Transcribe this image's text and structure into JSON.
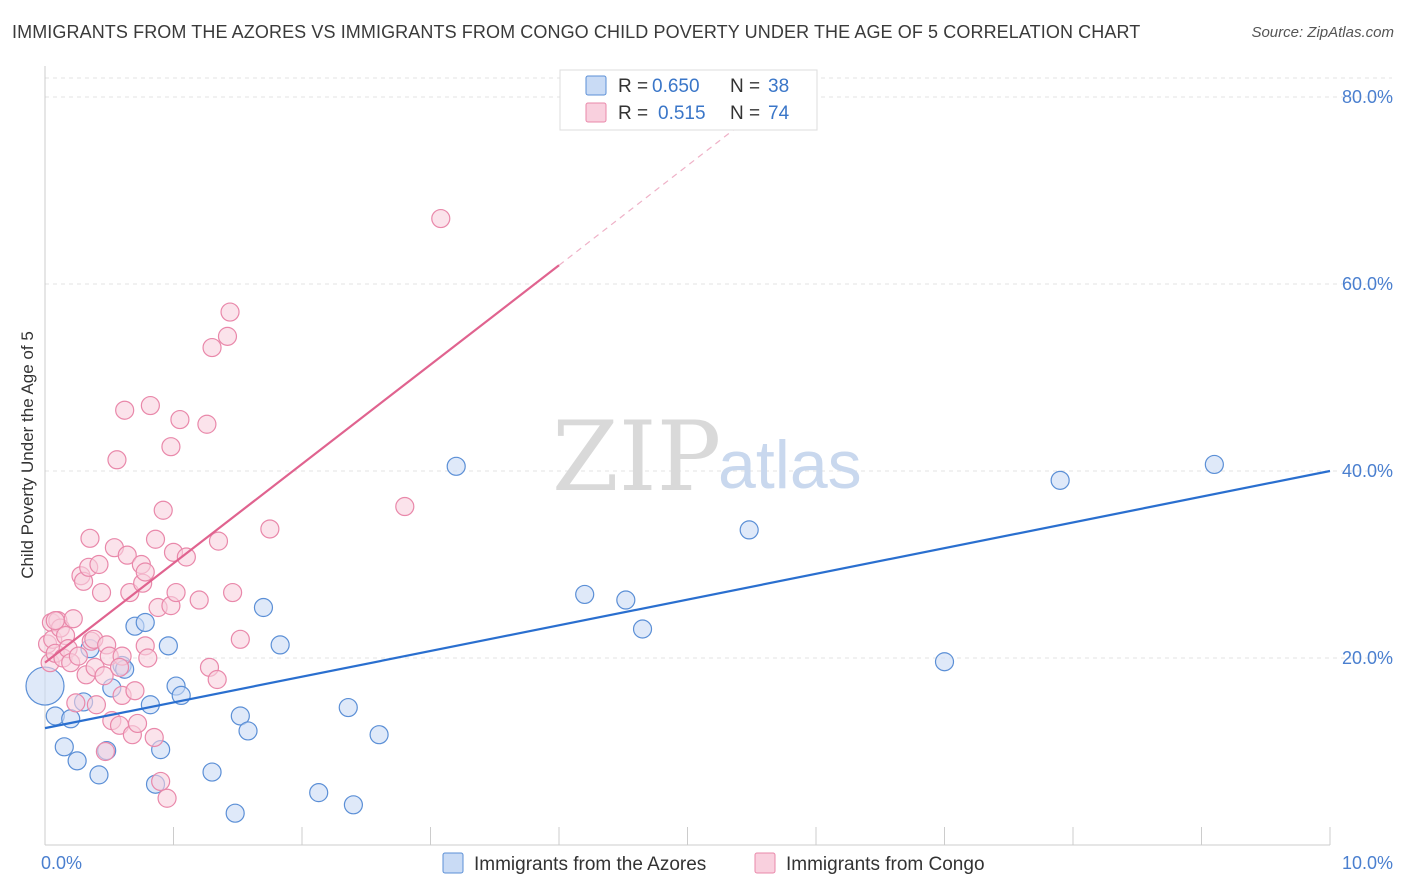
{
  "header": {
    "title": "IMMIGRANTS FROM THE AZORES VS IMMIGRANTS FROM CONGO CHILD POVERTY UNDER THE AGE OF 5 CORRELATION CHART",
    "source": "Source: ZipAtlas.com"
  },
  "watermark": {
    "zip": "ZIP",
    "atlas": "atlas"
  },
  "chart_data": {
    "type": "scatter",
    "title": "IMMIGRANTS FROM THE AZORES VS IMMIGRANTS FROM CONGO CHILD POVERTY UNDER THE AGE OF 5 CORRELATION CHART",
    "xlabel": "",
    "ylabel": "Child Poverty Under the Age of 5",
    "xlim": [
      0,
      10
    ],
    "ylim": [
      0,
      80
    ],
    "x_tick_labels": [
      "0.0%",
      "10.0%"
    ],
    "y_ticks": [
      20,
      40,
      60,
      80
    ],
    "y_tick_labels": [
      "20.0%",
      "40.0%",
      "60.0%",
      "80.0%"
    ],
    "grid": true,
    "legend": {
      "position": "top-center",
      "entries": [
        {
          "r_label": "R =",
          "r_value": "0.650",
          "n_label": "N =",
          "n_value": "38"
        },
        {
          "r_label": "R =",
          "r_value": "0.515",
          "n_label": "N =",
          "n_value": "74"
        }
      ]
    },
    "series": [
      {
        "name": "Immigrants from the Azores",
        "color": "#5b8fd6",
        "fill": "#c9dbf5",
        "trend": {
          "x0": 0.0,
          "y0": 12.5,
          "x1": 10.0,
          "y1": 40.0,
          "color": "#2a6fcf"
        },
        "points": [
          [
            0.0,
            17.0
          ],
          [
            0.08,
            13.8
          ],
          [
            0.15,
            10.5
          ],
          [
            0.2,
            13.5
          ],
          [
            0.25,
            9.0
          ],
          [
            0.3,
            15.3
          ],
          [
            0.35,
            21.0
          ],
          [
            0.42,
            7.5
          ],
          [
            0.48,
            10.1
          ],
          [
            0.52,
            16.8
          ],
          [
            0.6,
            19.2
          ],
          [
            0.62,
            18.8
          ],
          [
            0.7,
            23.4
          ],
          [
            0.78,
            23.8
          ],
          [
            0.82,
            15.0
          ],
          [
            0.86,
            6.5
          ],
          [
            0.9,
            10.2
          ],
          [
            0.96,
            21.3
          ],
          [
            1.02,
            17.0
          ],
          [
            1.06,
            16.0
          ],
          [
            1.3,
            7.8
          ],
          [
            1.48,
            3.4
          ],
          [
            1.52,
            13.8
          ],
          [
            1.58,
            12.2
          ],
          [
            1.7,
            25.4
          ],
          [
            1.83,
            21.4
          ],
          [
            2.13,
            5.6
          ],
          [
            2.36,
            14.7
          ],
          [
            2.4,
            4.3
          ],
          [
            2.6,
            11.8
          ],
          [
            3.2,
            40.5
          ],
          [
            4.2,
            26.8
          ],
          [
            4.52,
            26.2
          ],
          [
            4.65,
            23.1
          ],
          [
            5.48,
            33.7
          ],
          [
            7.0,
            19.6
          ],
          [
            7.9,
            39.0
          ],
          [
            9.1,
            40.7
          ]
        ]
      },
      {
        "name": "Immigrants from Congo",
        "color": "#e988aa",
        "fill": "#f9d0de",
        "trend": {
          "x0": 0.0,
          "y0": 19.5,
          "x1": 4.0,
          "y1": 62.0,
          "dash_x1": 5.5,
          "dash_y1": 78.0,
          "color": "#e0638f"
        },
        "points": [
          [
            0.02,
            21.5
          ],
          [
            0.04,
            19.5
          ],
          [
            0.05,
            23.8
          ],
          [
            0.06,
            22.0
          ],
          [
            0.08,
            20.5
          ],
          [
            0.1,
            24.0
          ],
          [
            0.12,
            23.2
          ],
          [
            0.14,
            20.0
          ],
          [
            0.16,
            22.4
          ],
          [
            0.18,
            21.0
          ],
          [
            0.2,
            19.5
          ],
          [
            0.22,
            24.2
          ],
          [
            0.24,
            15.2
          ],
          [
            0.26,
            20.2
          ],
          [
            0.28,
            28.8
          ],
          [
            0.3,
            28.2
          ],
          [
            0.32,
            18.2
          ],
          [
            0.34,
            29.7
          ],
          [
            0.35,
            32.8
          ],
          [
            0.36,
            21.8
          ],
          [
            0.38,
            22.0
          ],
          [
            0.39,
            19.0
          ],
          [
            0.4,
            15.0
          ],
          [
            0.42,
            30.0
          ],
          [
            0.44,
            27.0
          ],
          [
            0.46,
            18.1
          ],
          [
            0.47,
            10.0
          ],
          [
            0.48,
            21.4
          ],
          [
            0.5,
            20.2
          ],
          [
            0.52,
            13.3
          ],
          [
            0.54,
            31.8
          ],
          [
            0.56,
            41.2
          ],
          [
            0.58,
            12.8
          ],
          [
            0.6,
            20.2
          ],
          [
            0.6,
            16.0
          ],
          [
            0.62,
            46.5
          ],
          [
            0.64,
            31.0
          ],
          [
            0.66,
            27.0
          ],
          [
            0.68,
            11.8
          ],
          [
            0.7,
            16.5
          ],
          [
            0.72,
            13.0
          ],
          [
            0.75,
            30.0
          ],
          [
            0.76,
            28.0
          ],
          [
            0.78,
            21.3
          ],
          [
            0.78,
            29.2
          ],
          [
            0.8,
            20.0
          ],
          [
            0.82,
            47.0
          ],
          [
            0.85,
            11.5
          ],
          [
            0.86,
            32.7
          ],
          [
            0.88,
            25.4
          ],
          [
            0.9,
            6.8
          ],
          [
            0.92,
            35.8
          ],
          [
            0.95,
            5.0
          ],
          [
            0.98,
            25.6
          ],
          [
            0.98,
            42.6
          ],
          [
            1.0,
            31.3
          ],
          [
            1.02,
            27.0
          ],
          [
            1.05,
            45.5
          ],
          [
            1.1,
            30.8
          ],
          [
            1.2,
            26.2
          ],
          [
            1.26,
            45.0
          ],
          [
            1.28,
            19.0
          ],
          [
            1.3,
            53.2
          ],
          [
            1.34,
            17.7
          ],
          [
            1.35,
            32.5
          ],
          [
            1.42,
            54.4
          ],
          [
            1.44,
            57.0
          ],
          [
            1.46,
            27.0
          ],
          [
            1.52,
            22.0
          ],
          [
            1.75,
            33.8
          ],
          [
            2.8,
            36.2
          ],
          [
            3.08,
            67.0
          ],
          [
            0.58,
            19.0
          ],
          [
            0.08,
            24.0
          ]
        ]
      }
    ]
  }
}
